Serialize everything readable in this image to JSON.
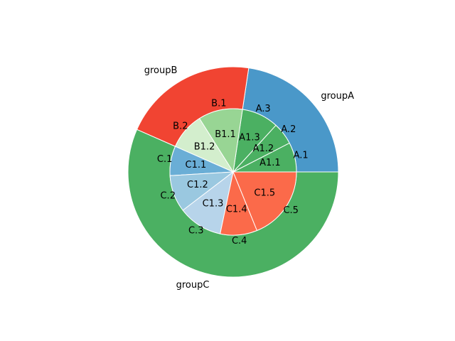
{
  "chart_data": {
    "type": "pie",
    "title": "",
    "start_angle_deg": 0,
    "direction": "counterclockwise",
    "outer_ring": {
      "labels": [
        "groupA",
        "groupB",
        "groupC"
      ],
      "values": [
        12,
        11,
        30
      ],
      "colors": [
        "#4a98c9",
        "#f14432",
        "#4bb062"
      ]
    },
    "inner_ring": {
      "wedge_labels": [
        "A.1",
        "A.2",
        "A.3",
        "B.1",
        "B.2",
        "C.1",
        "C.2",
        "C.3",
        "C.4",
        "C.5"
      ],
      "pct_labels": [
        "A1.1",
        "A1.2",
        "A1.3",
        "B1.1",
        "B1.2",
        "C1.1",
        "C1.2",
        "C1.3",
        "C1.4",
        "C1.5"
      ],
      "values": [
        4,
        3,
        5,
        6,
        5,
        4,
        5,
        6,
        5,
        10
      ],
      "colors": [
        "#4bb062",
        "#4bb062",
        "#4bb062",
        "#98d594",
        "#d3eecd",
        "#6aaed6",
        "#9ac8e0",
        "#b7d4ea",
        "#fb6a4a",
        "#fb6a4a"
      ]
    }
  }
}
